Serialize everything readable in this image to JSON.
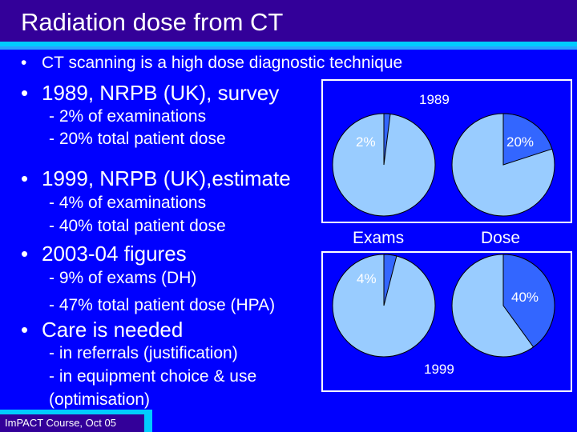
{
  "title": "Radiation dose from CT",
  "bullets": {
    "b0": "CT scanning is a high dose diagnostic technique",
    "b1": "1989, NRPB (UK), survey",
    "b1_s1": "- 2% of examinations",
    "b1_s2": "- 20% total patient dose",
    "b2": "1999, NRPB (UK),estimate",
    "b2_s1": "- 4% of examinations",
    "b2_s2": "- 40% total patient dose",
    "b3": "2003-04 figures",
    "b3_s1": "- 9% of exams (DH)",
    "b3_s2": "- 47% total patient dose (HPA)",
    "b4": "Care is needed",
    "b4_s1": "- in referrals (justification)",
    "b4_s2": "- in equipment choice & use",
    "b4_s3": "(optimisation)"
  },
  "charts": {
    "year_top": "1989",
    "year_bottom": "1999",
    "col_exams": "Exams",
    "col_dose": "Dose",
    "label_exams_1989": "2%",
    "label_dose_1989": "20%",
    "label_exams_1999": "4%",
    "label_dose_1999": "40%"
  },
  "chart_data": [
    {
      "type": "pie",
      "year": "1989",
      "name": "Exams",
      "values": [
        2,
        98
      ],
      "labels": [
        "2%",
        ""
      ]
    },
    {
      "type": "pie",
      "year": "1989",
      "name": "Dose",
      "values": [
        20,
        80
      ],
      "labels": [
        "20%",
        ""
      ]
    },
    {
      "type": "pie",
      "year": "1999",
      "name": "Exams",
      "values": [
        4,
        96
      ],
      "labels": [
        "4%",
        ""
      ]
    },
    {
      "type": "pie",
      "year": "1999",
      "name": "Dose",
      "values": [
        40,
        60
      ],
      "labels": [
        "40%",
        ""
      ]
    }
  ],
  "colors": {
    "background": "#0000ff",
    "title_bar": "#330099",
    "accent": "#00ccff",
    "pie_highlight": "#3366ff",
    "pie_rest": "#99ccff"
  },
  "footer": "ImPACT Course, Oct 05"
}
